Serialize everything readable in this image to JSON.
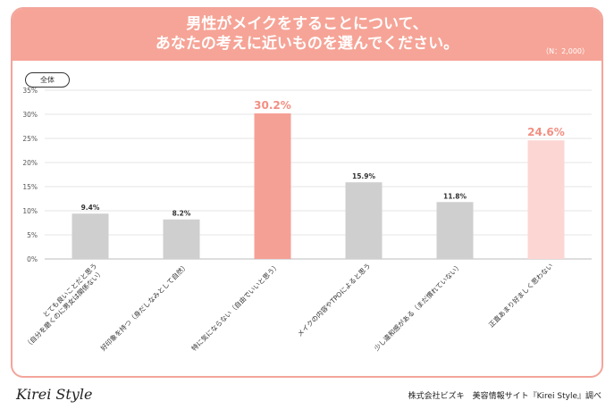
{
  "header": {
    "title_line1": "男性がメイクをすることについて、",
    "title_line2": "あなたの考えに近いものを選んでください。",
    "sample_note": "（N：2,000）"
  },
  "tag": {
    "label": "全体"
  },
  "footer": {
    "logo": "Kirei Style",
    "credit": "株式会社ビズキ　美容情報サイト『Kirei Style』調べ"
  },
  "colors": {
    "accent": "#f6a497",
    "highlight_strong": "#f5a095",
    "highlight_light": "#fcd6d3",
    "neutral": "#cfcfcf",
    "accent_text": "#f28f82"
  },
  "chart_data": {
    "type": "bar",
    "categories": [
      "とても良いことだと思う（自分を磨くのに男女は関係ない）",
      "好印象を持つ（身だしなみとして自然）",
      "特に気にならない（自由でいいと思う）",
      "メイクの内容やTPOによると思う",
      "少し違和感がある（まだ慣れていない）",
      "正直あまり好ましく思わない"
    ],
    "cat_lines": [
      [
        "とても良いことだと思う",
        "（自分を磨くのに男女は関係ない）"
      ],
      [
        "好印象を持つ（身だしなみとして自然）"
      ],
      [
        "特に気にならない（自由でいいと思う）"
      ],
      [
        "メイクの内容やTPOによると思う"
      ],
      [
        "少し違和感がある（まだ慣れていない）"
      ],
      [
        "正直あまり好ましく思わない"
      ]
    ],
    "values": [
      9.4,
      8.2,
      30.2,
      15.9,
      11.8,
      24.6
    ],
    "value_labels": [
      "9.4%",
      "8.2%",
      "30.2%",
      "15.9%",
      "11.8%",
      "24.6%"
    ],
    "highlight": [
      "none",
      "none",
      "strong",
      "none",
      "none",
      "light"
    ],
    "yticks": [
      "0%",
      "5%",
      "10%",
      "15%",
      "20%",
      "25%",
      "30%",
      "35%"
    ],
    "ylim": [
      0,
      35
    ],
    "grid": true
  }
}
